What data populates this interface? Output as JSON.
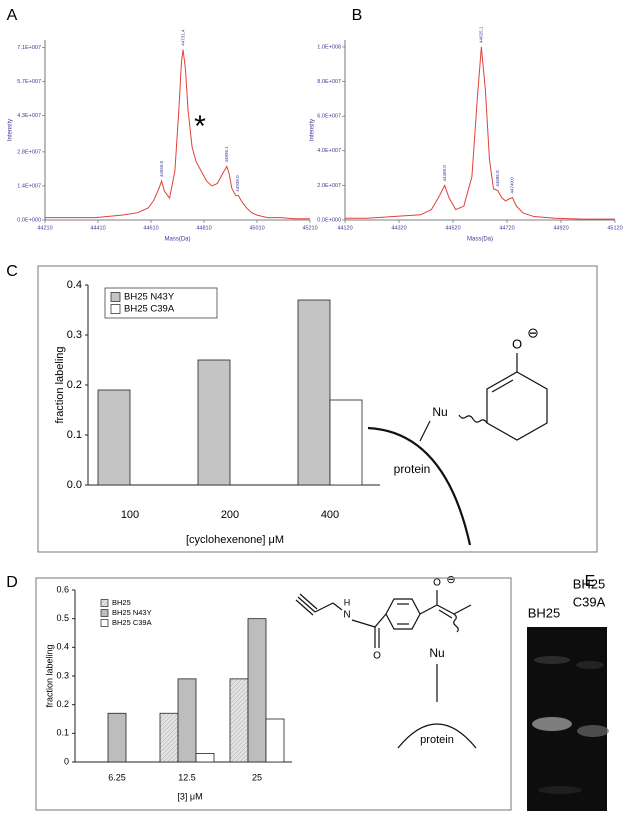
{
  "chart_data": [
    {
      "type": "line",
      "panel_label": "A",
      "x_label": "Mass(Da)",
      "y_label": "Intensity",
      "color": "#e2403a",
      "annotation": "*",
      "x": [
        44210,
        44300,
        44400,
        44500,
        44560,
        44600,
        44620,
        44640,
        44650,
        44660,
        44680,
        44700,
        44715,
        44725,
        44731,
        44740,
        44750,
        44765,
        44780,
        44800,
        44820,
        44840,
        44860,
        44875,
        44885,
        44896,
        44905,
        44915,
        44930,
        44940,
        44950,
        44970,
        44990,
        45010,
        45050,
        45100,
        45150,
        45210
      ],
      "values": [
        1000000,
        1000000,
        1000000,
        2000000,
        3000000,
        5000000,
        8000000,
        13000000,
        16000000,
        12000000,
        9000000,
        20000000,
        45000000,
        65000000,
        70000000,
        62000000,
        45000000,
        30000000,
        24000000,
        20000000,
        16000000,
        14000000,
        15000000,
        18000000,
        20000000,
        22000000,
        19000000,
        13000000,
        10000000,
        10000000,
        8000000,
        5000000,
        3000000,
        2000000,
        1000000,
        1000000,
        500000,
        500000
      ],
      "peak_labels": [
        {
          "x": 44650.0,
          "label": "44650.0"
        },
        {
          "x": 44731.4,
          "label": "44731.4"
        },
        {
          "x": 44896.1,
          "label": "44896.1"
        },
        {
          "x": 44938.0,
          "label": "44938.0"
        }
      ],
      "xlim": [
        44210,
        45210
      ],
      "xticks": [
        44210,
        44410,
        44610,
        44810,
        45010,
        45210
      ],
      "ylim": [
        0,
        74000000
      ],
      "yticks": [
        {
          "value": 0,
          "label": "0.0E+000"
        },
        {
          "value": 14000000,
          "label": "1.4E+007"
        },
        {
          "value": 28000000,
          "label": "2.8E+007"
        },
        {
          "value": 43000000,
          "label": "4.3E+007"
        },
        {
          "value": 57000000,
          "label": "5.7E+007"
        },
        {
          "value": 71000000,
          "label": "7.1E+007"
        }
      ]
    },
    {
      "type": "line",
      "panel_label": "B",
      "x_label": "Mass(Da)",
      "y_label": "Intensity",
      "color": "#e2403a",
      "x": [
        44120,
        44200,
        44300,
        44400,
        44440,
        44470,
        44489,
        44505,
        44530,
        44560,
        44590,
        44610,
        44625,
        44640,
        44655,
        44670,
        44686,
        44700,
        44715,
        44725,
        44740,
        44755,
        44780,
        44820,
        44900,
        45000,
        45120
      ],
      "values": [
        1000000,
        1000000,
        2000000,
        3000000,
        6000000,
        14000000,
        20000000,
        13000000,
        6000000,
        8000000,
        25000000,
        70000000,
        100000000,
        75000000,
        35000000,
        18000000,
        17000000,
        13000000,
        11000000,
        12000000,
        13000000,
        8000000,
        4000000,
        2000000,
        1000000,
        500000,
        500000
      ],
      "peak_labels": [
        {
          "x": 44489.0,
          "label": "44489.0"
        },
        {
          "x": 44625.1,
          "label": "44625.1"
        },
        {
          "x": 44686.8,
          "label": "44686.8"
        },
        {
          "x": 44740.0,
          "label": "44740.0"
        }
      ],
      "xlim": [
        44120,
        45120
      ],
      "xticks": [
        44120,
        44320,
        44520,
        44720,
        44920,
        45120
      ],
      "ylim": [
        0,
        104000000
      ],
      "yticks": [
        {
          "value": 0,
          "label": "0.0E+000"
        },
        {
          "value": 20000000,
          "label": "2.0E+007"
        },
        {
          "value": 40000000,
          "label": "4.0E+007"
        },
        {
          "value": 60000000,
          "label": "6.0E+007"
        },
        {
          "value": 80000000,
          "label": "8.0E+007"
        },
        {
          "value": 100000000,
          "label": "1.0E+008"
        }
      ]
    },
    {
      "type": "bar",
      "panel_label": "C",
      "x_label": "[cyclohexenone] μM",
      "y_label": "fraction labeling",
      "legend": "upper left",
      "legend_frame": true,
      "categories": [
        "100",
        "200",
        "400"
      ],
      "series": [
        {
          "name": "BH25 N43Y",
          "color": "#c4c4c4",
          "values": [
            0.19,
            0.25,
            0.37
          ]
        },
        {
          "name": "BH25 C39A",
          "color": "#ffffff",
          "values": [
            0,
            0,
            0.17
          ]
        }
      ],
      "ylim": [
        0,
        0.4
      ],
      "yticks": [
        {
          "value": 0,
          "label": "0.0"
        },
        0.1,
        0.2,
        0.3,
        0.4
      ],
      "structure": {
        "oxygen": "O",
        "charge": "⊖",
        "nucleophile": "Nu",
        "target": "protein"
      }
    },
    {
      "type": "bar",
      "panel_label": "D",
      "x_label": "[3] μM",
      "y_label": "fraction labeling",
      "legend": "upper left",
      "legend_frame": false,
      "categories": [
        "6.25",
        "12.5",
        "25"
      ],
      "series": [
        {
          "name": "BH25",
          "color": "#e4e4e4",
          "hatch": true,
          "values": [
            0,
            0.17,
            0.29
          ]
        },
        {
          "name": "BH25 N43Y",
          "color": "#bdbdbd",
          "values": [
            0.17,
            0.29,
            0.5
          ]
        },
        {
          "name": "BH25 C39A",
          "color": "#ffffff",
          "values": [
            0,
            0.03,
            0.15
          ]
        }
      ],
      "ylim": [
        0,
        0.6
      ],
      "yticks": [
        0,
        0.1,
        0.2,
        0.3,
        0.4,
        0.5,
        0.6
      ],
      "structure": {
        "oxygen": "O",
        "charge": "⊖",
        "amide_h": "H",
        "amide_n": "N",
        "carbonyl_o": "O",
        "nucleophile": "Nu",
        "target": "protein"
      }
    }
  ],
  "gel": {
    "panel_label": "E",
    "lanes": [
      [
        "BH25"
      ],
      [
        "BH25",
        "C39A"
      ]
    ]
  }
}
